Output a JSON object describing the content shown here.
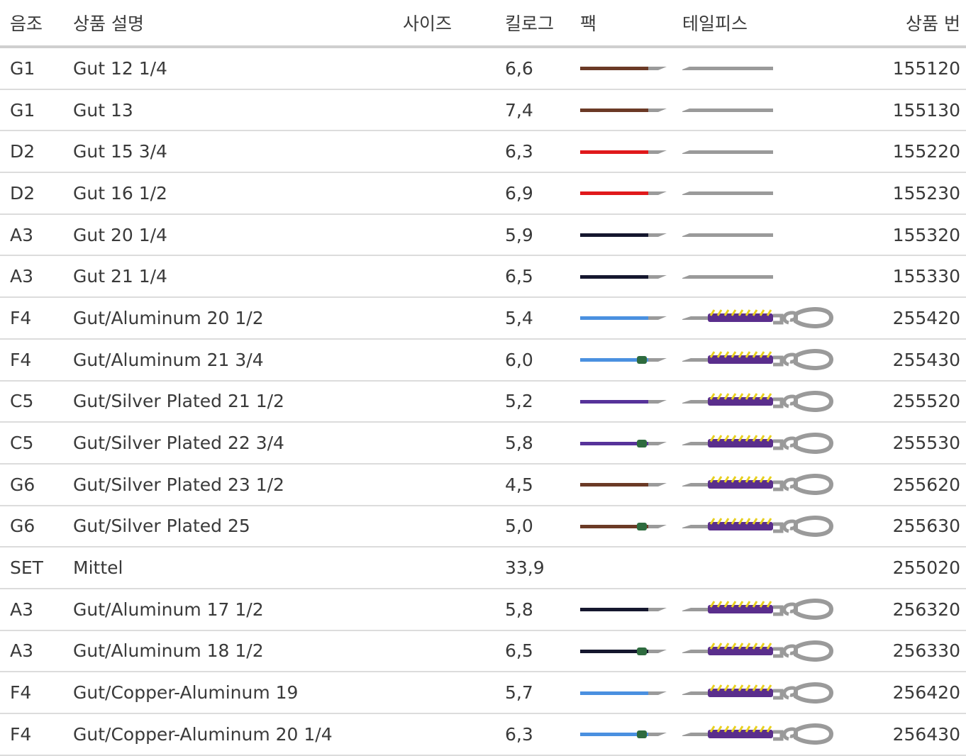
{
  "table": {
    "header": [
      "음조",
      "상품 설명",
      "사이즈",
      "킬로그",
      "팩",
      "테일피스",
      "상품 번"
    ],
    "rows": [
      {
        "note": "G1",
        "description": "Gut 12 1/4",
        "kilo": "6,6",
        "product": "155120"
      },
      {
        "note": "G1",
        "description": "Gut 13",
        "kilo": "7,4",
        "product": "155130"
      },
      {
        "note": "D2",
        "description": "Gut 15 3/4",
        "kilo": "6,3",
        "product": "155220"
      },
      {
        "note": "D2",
        "description": "Gut 16 1/2",
        "kilo": "6,9",
        "product": "155230"
      },
      {
        "note": "A3",
        "description": "Gut 20 1/4",
        "kilo": "5,9",
        "product": "155320"
      },
      {
        "note": "A3",
        "description": "Gut 21 1/4",
        "kilo": "6,5",
        "product": "155330"
      },
      {
        "note": "F4",
        "description": "Gut/Aluminum 20 1/2",
        "kilo": "5,4",
        "product": "255420"
      },
      {
        "note": "F4",
        "description": "Gut/Aluminum 21 3/4",
        "kilo": "6,0",
        "product": "255430"
      },
      {
        "note": "C5",
        "description": "Gut/Silver Plated 21 1/2",
        "kilo": "5,2",
        "product": "255520"
      },
      {
        "note": "C5",
        "description": "Gut/Silver Plated 22 3/4",
        "kilo": "5,8",
        "product": "255530"
      },
      {
        "note": "G6",
        "description": "Gut/Silver Plated 23 1/2",
        "kilo": "4,5",
        "product": "255620"
      },
      {
        "note": "G6",
        "description": "Gut/Silver Plated 25",
        "kilo": "5,0",
        "product": "255630"
      },
      {
        "note": "SET",
        "description": "Mittel",
        "kilo": "33,9",
        "product": "255020"
      },
      {
        "note": "A3",
        "description": "Gut/Aluminum 17 1/2",
        "kilo": "5,8",
        "product": "256320"
      },
      {
        "note": "A3",
        "description": "Gut/Aluminum 18 1/2",
        "kilo": "6,5",
        "product": "256330"
      },
      {
        "note": "F4",
        "description": "Gut/Copper-Aluminum 19",
        "kilo": "5,7",
        "product": "256420"
      },
      {
        "note": "F4",
        "description": "Gut/Copper-Aluminum 20 1/4",
        "kilo": "6,3",
        "product": "256430"
      }
    ]
  }
}
